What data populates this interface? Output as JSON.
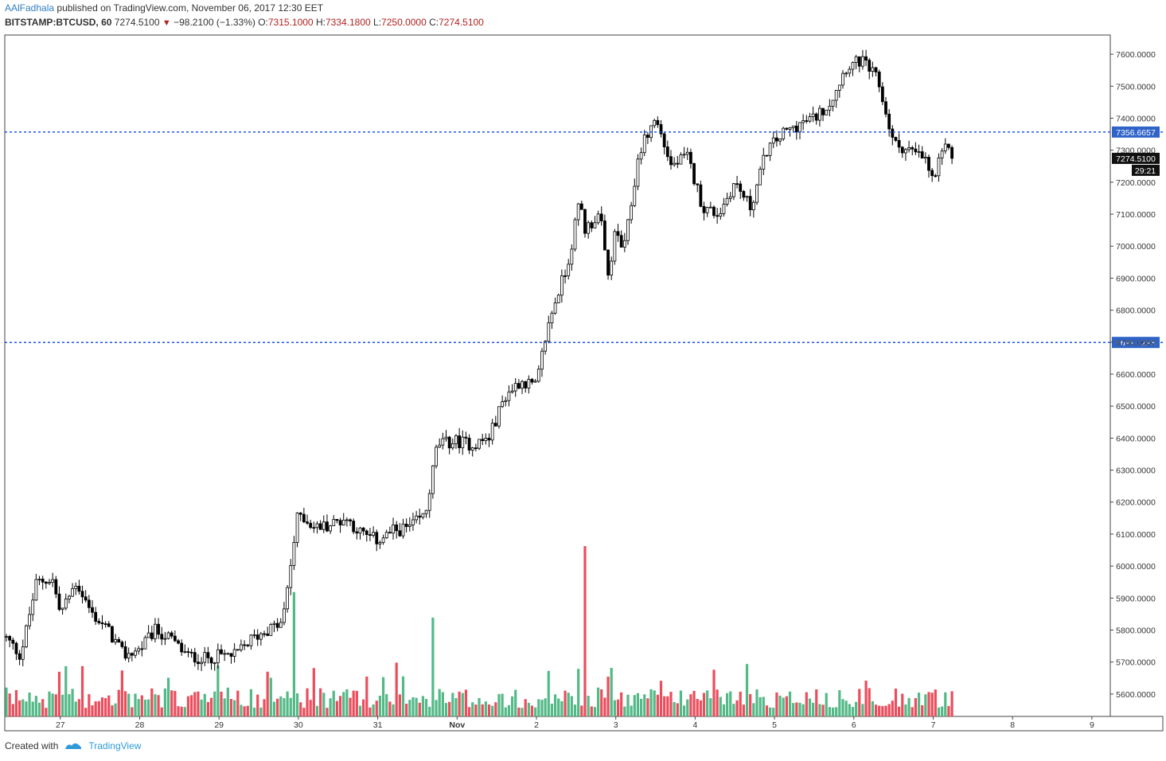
{
  "header": {
    "author": "AAlFadhala",
    "published_text": "published on TradingView.com, November 06, 2017 12:30 EET",
    "symbol": "BITSTAMP:BTCUSD, 60",
    "last": "7274.5100",
    "change": "−98.2100 (−1.33%)",
    "o_label": "O:",
    "o_value": "7315.1000",
    "h_label": "H:",
    "h_value": "7334.1800",
    "l_label": "L:",
    "l_value": "7250.0000",
    "c_label": "C:",
    "c_value": "7274.5100"
  },
  "footer": {
    "created_with": "Created with",
    "brand": "TradingView"
  },
  "colors": {
    "up": "#53b987",
    "down": "#eb4d5c",
    "candle": "#000000",
    "hline": "#1e53e5",
    "grid_border": "#444444"
  },
  "chart_data": {
    "type": "candlestick",
    "interval": "60",
    "x_tick_labels": [
      "27",
      "28",
      "29",
      "30",
      "31",
      "Nov",
      "2",
      "3",
      "4",
      "5",
      "6",
      "7",
      "8",
      "9"
    ],
    "y_tick_labels": [
      "5600.0000",
      "5700.0000",
      "5800.0000",
      "5900.0000",
      "6000.0000",
      "6100.0000",
      "6200.0000",
      "6300.0000",
      "6400.0000",
      "6500.0000",
      "6600.0000",
      "6700.0000",
      "6800.0000",
      "6900.0000",
      "7000.0000",
      "7100.0000",
      "7200.0000",
      "7300.0000",
      "7400.0000",
      "7500.0000",
      "7600.0000"
    ],
    "y_range": [
      5530,
      7660
    ],
    "x_range_days": [
      26.3,
      33.95
    ],
    "horizontal_lines": [
      {
        "value": 7356.6657,
        "label": "7356.6657"
      },
      {
        "value": 6699.0298,
        "label": "6699.0298"
      }
    ],
    "last_price": {
      "value": 7274.51,
      "label": "7274.5100",
      "countdown": "29:21"
    },
    "price_path": [
      [
        26.3,
        5780
      ],
      [
        26.5,
        5720
      ],
      [
        26.7,
        5950
      ],
      [
        26.9,
        5960
      ],
      [
        27.0,
        5850
      ],
      [
        27.2,
        5950
      ],
      [
        27.4,
        5850
      ],
      [
        27.6,
        5800
      ],
      [
        27.8,
        5720
      ],
      [
        28.0,
        5740
      ],
      [
        28.2,
        5800
      ],
      [
        28.4,
        5770
      ],
      [
        28.6,
        5720
      ],
      [
        28.8,
        5710
      ],
      [
        29.0,
        5720
      ],
      [
        29.2,
        5720
      ],
      [
        29.4,
        5770
      ],
      [
        29.6,
        5800
      ],
      [
        29.8,
        5820
      ],
      [
        29.9,
        6000
      ],
      [
        30.0,
        6170
      ],
      [
        30.2,
        6120
      ],
      [
        30.4,
        6130
      ],
      [
        30.6,
        6150
      ],
      [
        30.8,
        6100
      ],
      [
        31.0,
        6080
      ],
      [
        31.2,
        6110
      ],
      [
        31.4,
        6120
      ],
      [
        31.6,
        6160
      ],
      [
        31.75,
        6380
      ],
      [
        32.0,
        6390
      ],
      [
        32.2,
        6380
      ],
      [
        32.4,
        6400
      ],
      [
        32.6,
        6530
      ],
      [
        32.8,
        6580
      ],
      [
        33.0,
        6560
      ],
      [
        33.1,
        6700
      ],
      [
        33.2,
        6800
      ],
      [
        33.4,
        6950
      ],
      [
        33.55,
        7150
      ],
      [
        33.6,
        7050
      ],
      [
        33.8,
        7100
      ],
      [
        33.9,
        6900
      ],
      [
        34.0,
        7050
      ],
      [
        34.1,
        6980
      ],
      [
        34.3,
        7300
      ],
      [
        34.5,
        7400
      ],
      [
        34.7,
        7250
      ],
      [
        34.9,
        7280
      ],
      [
        35.1,
        7120
      ],
      [
        35.3,
        7100
      ],
      [
        35.5,
        7200
      ],
      [
        35.7,
        7120
      ],
      [
        35.9,
        7300
      ],
      [
        36.1,
        7350
      ],
      [
        36.3,
        7380
      ],
      [
        36.5,
        7400
      ],
      [
        36.7,
        7450
      ],
      [
        36.9,
        7560
      ],
      [
        37.1,
        7580
      ],
      [
        37.3,
        7520
      ],
      [
        37.5,
        7320
      ],
      [
        37.7,
        7300
      ],
      [
        37.9,
        7270
      ],
      [
        38.0,
        7200
      ],
      [
        38.1,
        7280
      ],
      [
        38.2,
        7320
      ],
      [
        38.25,
        7274.51
      ]
    ],
    "volume_series": {
      "name": "Volume",
      "max_relative": 1.0,
      "spikes": [
        [
          29.95,
          0.58
        ],
        [
          31.7,
          0.58
        ],
        [
          33.6,
          1.0
        ]
      ]
    }
  }
}
